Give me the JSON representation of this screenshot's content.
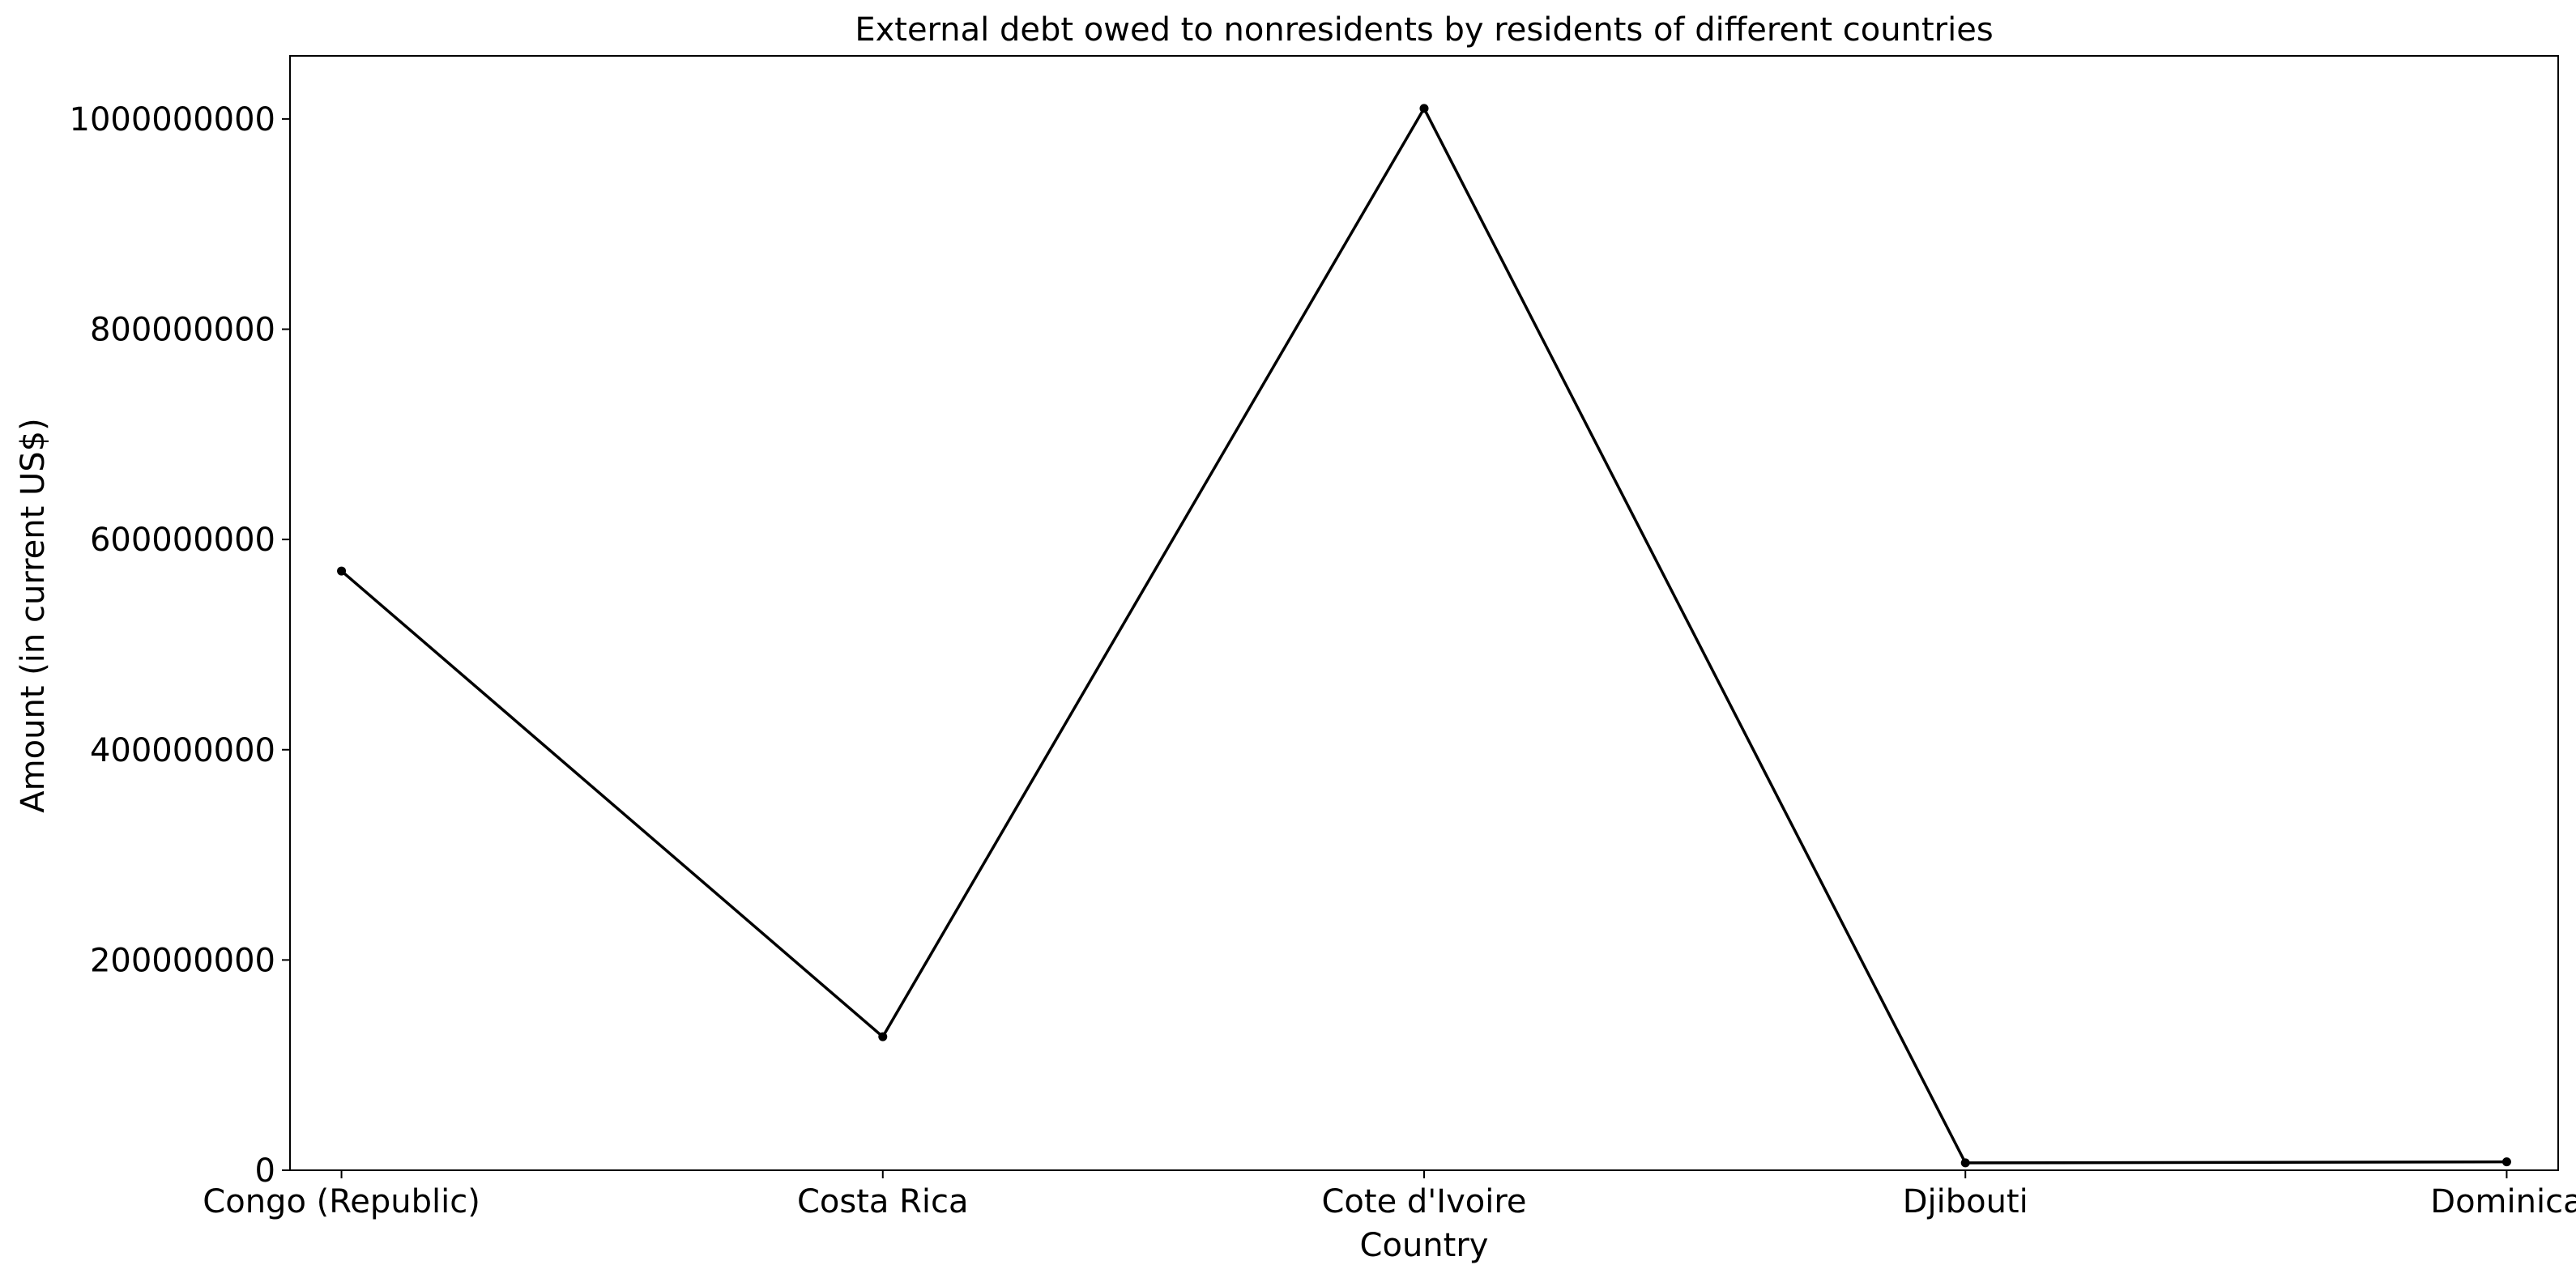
{
  "chart_data": {
    "type": "line",
    "title": "External debt owed to nonresidents by residents of different countries",
    "xlabel": "Country",
    "ylabel": "Amount (in current US$)",
    "categories": [
      "Congo (Republic)",
      "Costa Rica",
      "Cote d'Ivoire",
      "Djibouti",
      "Dominica"
    ],
    "series": [
      {
        "values": [
          570000000,
          127000000,
          1010000000,
          7000000,
          8000000
        ],
        "color": "#000000",
        "marker": "dot"
      }
    ],
    "yticks": [
      0,
      200000000,
      400000000,
      600000000,
      800000000,
      1000000000
    ],
    "ytick_labels": [
      "0",
      "200000000",
      "400000000",
      "600000000",
      "800000000",
      "1000000000"
    ],
    "ylim": [
      0,
      1060000000
    ],
    "grid": false,
    "legend": "none"
  }
}
